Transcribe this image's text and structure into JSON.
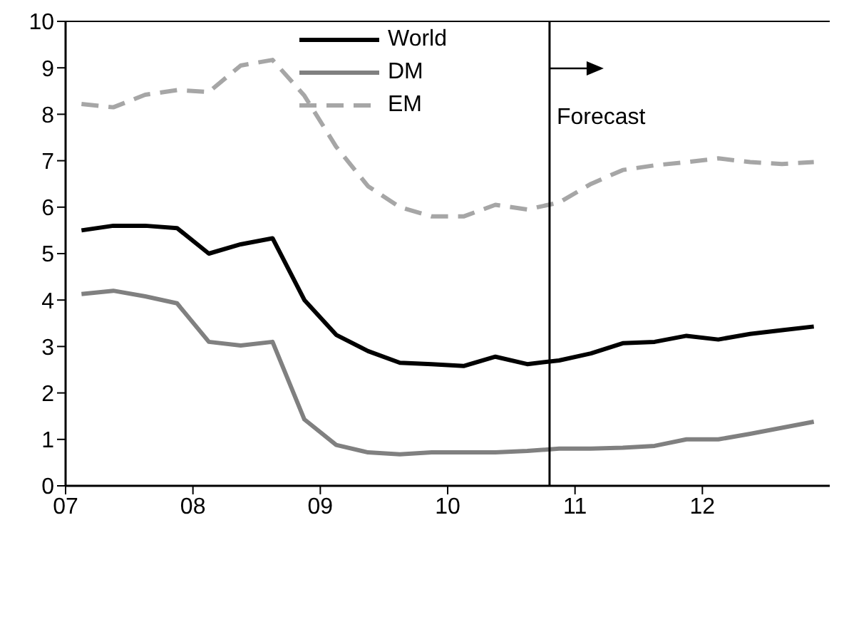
{
  "chart_data": {
    "type": "line",
    "x": [
      2007.125,
      2007.375,
      2007.625,
      2007.875,
      2008.125,
      2008.375,
      2008.625,
      2008.875,
      2009.125,
      2009.375,
      2009.625,
      2009.875,
      2010.125,
      2010.375,
      2010.625,
      2010.875,
      2011.125,
      2011.375,
      2011.625,
      2011.875,
      2012.125,
      2012.375,
      2012.625,
      2012.875
    ],
    "series": [
      {
        "name": "World",
        "color": "#000000",
        "line_style": "solid",
        "values": [
          5.5,
          5.6,
          5.6,
          5.55,
          5.0,
          5.2,
          5.33,
          4.0,
          3.25,
          2.9,
          2.65,
          2.62,
          2.58,
          2.78,
          2.62,
          2.7,
          2.85,
          3.07,
          3.1,
          3.23,
          3.15,
          3.27,
          3.35,
          3.43
        ]
      },
      {
        "name": "DM",
        "color": "#808080",
        "line_style": "solid",
        "values": [
          4.13,
          4.2,
          4.08,
          3.93,
          3.1,
          3.02,
          3.1,
          1.43,
          0.88,
          0.72,
          0.68,
          0.72,
          0.72,
          0.72,
          0.75,
          0.8,
          0.8,
          0.82,
          0.86,
          1.0,
          1.0,
          1.12,
          1.25,
          1.38
        ]
      },
      {
        "name": "EM",
        "color": "#a6a6a6",
        "line_style": "dashed",
        "values": [
          8.22,
          8.15,
          8.42,
          8.52,
          8.48,
          9.05,
          9.17,
          8.4,
          7.3,
          6.45,
          6.0,
          5.8,
          5.8,
          6.05,
          5.95,
          6.1,
          6.5,
          6.8,
          6.9,
          6.97,
          7.05,
          6.97,
          6.93,
          6.97
        ]
      }
    ],
    "xlim": [
      2007,
      2013
    ],
    "xticks": [
      {
        "value": 2007,
        "label": "07"
      },
      {
        "value": 2008,
        "label": "08"
      },
      {
        "value": 2009,
        "label": "09"
      },
      {
        "value": 2010,
        "label": "10"
      },
      {
        "value": 2011,
        "label": "11"
      },
      {
        "value": 2012,
        "label": "12"
      }
    ],
    "ylim": [
      0,
      10
    ],
    "yticks": [
      0,
      1,
      2,
      3,
      4,
      5,
      6,
      7,
      8,
      9,
      10
    ],
    "ref_lines": [
      {
        "axis": "x",
        "value": 2010.8,
        "label": "Forecast",
        "color": "#000000"
      }
    ],
    "grid": false,
    "legend": "top",
    "marker": "none"
  }
}
